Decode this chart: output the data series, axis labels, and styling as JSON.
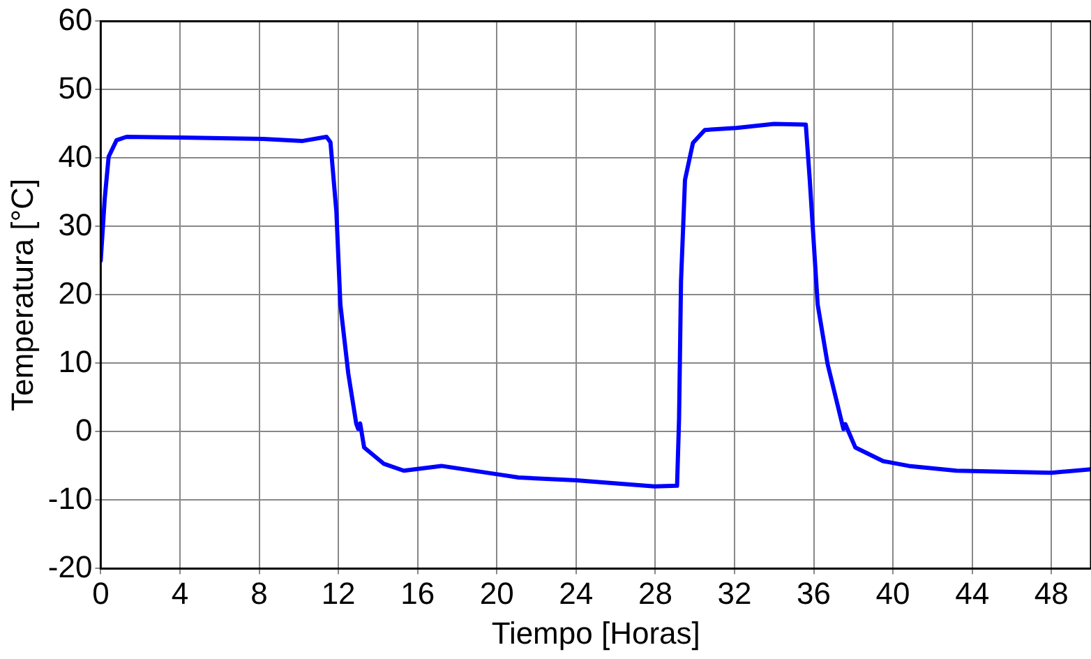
{
  "chart_data": {
    "type": "line",
    "xlabel": "Tiempo [Horas]",
    "ylabel": "Temperatura [°C]",
    "xlim": [
      0,
      50
    ],
    "xticks": [
      0,
      4,
      8,
      12,
      16,
      20,
      24,
      28,
      32,
      36,
      40,
      44,
      48
    ],
    "ylim": [
      -20,
      60
    ],
    "yticks": [
      -20,
      -10,
      0,
      10,
      20,
      30,
      40,
      50,
      60
    ],
    "grid": true,
    "marker": "none",
    "line_style": "solid",
    "series": [
      {
        "color": "#0000ff",
        "x": [
          0,
          0.2,
          0.4,
          0.8,
          1.3,
          4,
          8.2,
          10.2,
          11.4,
          11.6,
          11.9,
          12.1,
          12.5,
          12.9,
          13.0,
          13.1,
          13.3,
          14.3,
          15.3,
          17.2,
          20.2,
          21.1,
          24,
          27.96,
          29.1,
          29.2,
          29.3,
          29.5,
          29.9,
          30.5,
          32.1,
          34.0,
          35.6,
          35.8,
          36.2,
          36.7,
          37.5,
          37.6,
          37.7,
          38.1,
          39.5,
          40.8,
          43.2,
          48,
          50
        ],
        "values": [
          25,
          34,
          40.2,
          42.6,
          43.1,
          43,
          42.8,
          42.5,
          43.1,
          42.3,
          32.1,
          18.6,
          8.5,
          1.2,
          0.4,
          1.2,
          -2.3,
          -4.7,
          -5.7,
          -5.0,
          -6.3,
          -6.7,
          -7.1,
          -8.0,
          -7.9,
          1.8,
          22,
          36.8,
          42.2,
          44.1,
          44.4,
          45.0,
          44.9,
          36.8,
          18.6,
          9.9,
          0.4,
          1.1,
          0.4,
          -2.3,
          -4.3,
          -5.0,
          -5.7,
          -6.0,
          -5.5
        ]
      }
    ]
  }
}
